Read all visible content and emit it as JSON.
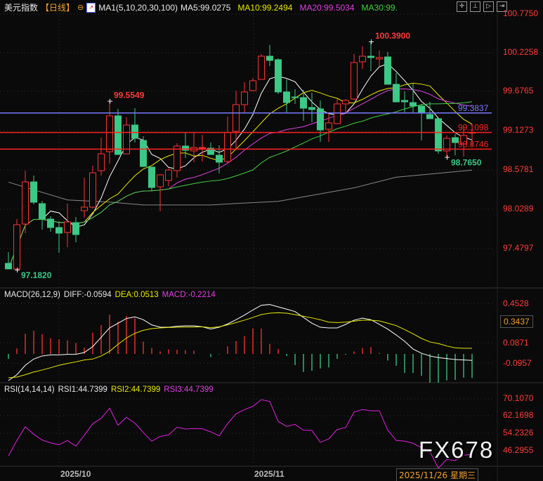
{
  "header": {
    "title": "美元指数",
    "period": "【日线】",
    "ma_label": "MA1(5,10,20,30,100)",
    "ma5": "MA5:99.0275",
    "ma10": "MA10:99.2494",
    "ma20": "MA20:99.5034",
    "ma30": "MA30:99."
  },
  "toolbar": {
    "icons": [
      "crosshair-icon",
      "range-icon",
      "play-icon",
      "forward-icon"
    ]
  },
  "price_axis": [
    "100.7750",
    "100.2258",
    "99.6765",
    "99.1273",
    "98.5781",
    "98.0289",
    "97.4797"
  ],
  "annotations": {
    "high1": "99.5549",
    "high2": "100.3900",
    "low1": "97.1820",
    "low2": "98.7650"
  },
  "hlines": [
    {
      "value": 99.3837,
      "label": "99.3837",
      "color": "#7b7bff"
    },
    {
      "value": 99.1098,
      "label": "99.1098",
      "color": "#ff2020"
    },
    {
      "value": 98.8746,
      "label": "98.8746",
      "color": "#ff2020"
    }
  ],
  "macd": {
    "label": "MACD(26,12,9)",
    "diff": "DIFF:-0.0594",
    "dea": "DEA:0.0513",
    "macd": "MACD:-0.2214",
    "axis": [
      "0.4528",
      "0.0871",
      "-0.0957"
    ],
    "current": "0.3437"
  },
  "rsi": {
    "label": "RSI(14,14,14)",
    "rsi1": "RSI1:44.7399",
    "rsi2": "RSI2:44.7399",
    "rsi3": "RSI3:44.7399",
    "axis": [
      "70.1070",
      "62.1698",
      "54.2326",
      "46.2955"
    ]
  },
  "xaxis": {
    "oct": "2025/10",
    "nov": "2025/11",
    "cursor_date": "2025/11/26 星期三"
  },
  "watermark": "FX678",
  "colors": {
    "up": "#ff3232",
    "down": "#3cc886",
    "ma5": "#ffffff",
    "ma10": "#e8e800",
    "ma20": "#e040e0",
    "ma30": "#40d040",
    "ma100": "#888888"
  },
  "chart_data": {
    "type": "candlestick",
    "ohlc": [
      [
        97.268,
        97.426,
        97.2,
        97.19
      ],
      [
        97.189,
        97.891,
        97.182,
        97.812
      ],
      [
        97.821,
        98.572,
        97.693,
        98.414
      ],
      [
        98.414,
        98.503,
        98.098,
        98.128
      ],
      [
        98.108,
        98.147,
        97.742,
        97.891
      ],
      [
        97.891,
        97.93,
        97.713,
        97.772
      ],
      [
        97.772,
        97.861,
        97.416,
        97.693
      ],
      [
        97.703,
        98.108,
        97.495,
        97.851
      ],
      [
        97.841,
        97.92,
        97.565,
        97.673
      ],
      [
        98.009,
        98.473,
        97.91,
        98.059
      ],
      [
        98.059,
        98.641,
        98.039,
        98.542
      ],
      [
        98.572,
        99.036,
        98.503,
        98.809
      ],
      [
        98.839,
        99.5549,
        98.671,
        99.343
      ],
      [
        99.343,
        99.441,
        98.799,
        98.799
      ],
      [
        98.809,
        99.323,
        98.809,
        99.214
      ],
      [
        99.214,
        99.451,
        98.967,
        99.027
      ],
      [
        98.997,
        99.056,
        98.622,
        98.631
      ],
      [
        98.622,
        98.622,
        98.286,
        98.335
      ],
      [
        98.345,
        98.523,
        97.999,
        98.513
      ],
      [
        98.434,
        98.602,
        98.355,
        98.582
      ],
      [
        98.572,
        98.957,
        98.473,
        98.918
      ],
      [
        98.918,
        99.116,
        98.75,
        98.859
      ],
      [
        98.849,
        99.116,
        98.691,
        98.898
      ],
      [
        98.888,
        99.076,
        98.701,
        98.898
      ],
      [
        98.888,
        98.967,
        98.799,
        98.799
      ],
      [
        98.789,
        98.928,
        98.533,
        98.691
      ],
      [
        98.701,
        99.333,
        98.681,
        99.106
      ],
      [
        99.125,
        99.698,
        98.869,
        99.501
      ],
      [
        99.501,
        99.817,
        99.382,
        99.679
      ],
      [
        99.698,
        99.876,
        99.688,
        99.837
      ],
      [
        99.856,
        100.212,
        99.856,
        100.182
      ],
      [
        100.182,
        100.34,
        100.044,
        100.123
      ],
      [
        100.133,
        100.153,
        99.649,
        99.679
      ],
      [
        99.679,
        99.856,
        99.392,
        99.53
      ],
      [
        99.609,
        99.718,
        99.511,
        99.6
      ],
      [
        99.6,
        99.708,
        99.274,
        99.451
      ],
      [
        99.461,
        99.669,
        99.254,
        99.432
      ],
      [
        99.441,
        99.56,
        98.977,
        99.145
      ],
      [
        99.155,
        99.392,
        98.977,
        99.244
      ],
      [
        99.234,
        99.58,
        99.234,
        99.511
      ],
      [
        99.511,
        99.58,
        99.392,
        99.56
      ],
      [
        99.58,
        100.212,
        99.56,
        100.093
      ],
      [
        100.103,
        100.321,
        100.004,
        100.182
      ],
      [
        100.182,
        100.39,
        99.975,
        100.163
      ],
      [
        100.143,
        100.261,
        100.044,
        100.163
      ],
      [
        100.172,
        100.242,
        99.787,
        99.787
      ],
      [
        99.787,
        99.945,
        99.53,
        99.54
      ],
      [
        99.56,
        99.688,
        99.392,
        99.54
      ],
      [
        99.53,
        99.797,
        99.392,
        99.481
      ],
      [
        99.481,
        99.511,
        98.997,
        99.382
      ],
      [
        99.362,
        99.54,
        99.303,
        99.303
      ],
      [
        99.303,
        99.303,
        98.809,
        98.849
      ],
      [
        98.849,
        99.066,
        98.765,
        99.027
      ],
      [
        99.036,
        99.086,
        98.789,
        98.967
      ],
      [
        98.948,
        99.214,
        98.77,
        99.066
      ],
      [
        99.1,
        99.214,
        98.918,
        99.11
      ]
    ],
    "ma100_points": [
      [
        1,
        98.41
      ],
      [
        8,
        98.16
      ],
      [
        13,
        98.13
      ],
      [
        17,
        98.09
      ],
      [
        25,
        98.09
      ],
      [
        28,
        98.11
      ],
      [
        33,
        98.14
      ],
      [
        42,
        98.33
      ],
      [
        47,
        98.48
      ],
      [
        56,
        98.58
      ]
    ],
    "ylim": [
      97.0,
      100.8
    ],
    "macd_hist": [
      -0.046,
      0.05,
      0.185,
      0.212,
      0.18,
      0.143,
      0.134,
      0.124,
      0.1,
      0.059,
      0.195,
      0.265,
      0.36,
      0.296,
      0.349,
      0.328,
      0.113,
      0.055,
      0.023,
      0.042,
      0.038,
      0.034,
      0.029,
      0,
      -0.029,
      -0.004,
      0.069,
      0.118,
      0.164,
      0.233,
      0.233,
      0.092,
      0.044,
      -0.019,
      -0.103,
      -0.166,
      -0.155,
      -0.134,
      -0.124,
      -0.046,
      -0.008,
      0.023,
      0.055,
      0.063,
      0.008,
      -0.061,
      -0.109,
      -0.176,
      -0.176,
      -0.202,
      -0.265,
      -0.265,
      -0.244,
      -0.239,
      -0.218,
      -0.2214
    ],
    "diff": [
      -0.245,
      -0.191,
      -0.105,
      -0.047,
      -0.019,
      -0.009,
      -0.009,
      -0.004,
      -0.004,
      0.013,
      0.067,
      0.153,
      0.239,
      0.282,
      0.325,
      0.34,
      0.314,
      0.267,
      0.245,
      0.245,
      0.254,
      0.258,
      0.258,
      0.249,
      0.228,
      0.245,
      0.275,
      0.314,
      0.357,
      0.404,
      0.447,
      0.454,
      0.432,
      0.411,
      0.389,
      0.335,
      0.282,
      0.245,
      0.239,
      0.239,
      0.271,
      0.31,
      0.329,
      0.314,
      0.271,
      0.228,
      0.174,
      0.116,
      0.045,
      0.006,
      -0.019,
      -0.034,
      -0.043,
      -0.052,
      -0.056,
      -0.0594
    ],
    "dea": [
      -0.219,
      -0.213,
      -0.191,
      -0.166,
      -0.148,
      -0.127,
      -0.105,
      -0.088,
      -0.073,
      -0.056,
      -0.047,
      -0.019,
      0.024,
      0.088,
      0.146,
      0.189,
      0.217,
      0.232,
      0.239,
      0.243,
      0.245,
      0.247,
      0.247,
      0.249,
      0.241,
      0.249,
      0.267,
      0.288,
      0.31,
      0.335,
      0.361,
      0.374,
      0.378,
      0.374,
      0.361,
      0.346,
      0.331,
      0.314,
      0.292,
      0.288,
      0.292,
      0.301,
      0.31,
      0.31,
      0.303,
      0.282,
      0.26,
      0.224,
      0.185,
      0.142,
      0.11,
      0.095,
      0.073,
      0.056,
      0.052,
      0.0513
    ],
    "rsi": [
      44.03,
      51.11,
      57.45,
      54.01,
      51.33,
      50.04,
      49.18,
      51.11,
      48.54,
      53.47,
      58.84,
      61.2,
      65.92,
      58.09,
      61.74,
      59.06,
      54.76,
      50.79,
      52.94,
      53.69,
      57.23,
      56.37,
      56.59,
      56.48,
      55.08,
      53.26,
      58.84,
      63.35,
      65.28,
      66.78,
      69.79,
      69.03,
      59.91,
      57.55,
      58.52,
      55.84,
      55.73,
      50.26,
      51.87,
      56.16,
      57.02,
      64.1,
      65.28,
      64.74,
      64.74,
      55.84,
      51.11,
      50.79,
      49.83,
      47.79,
      45.96,
      38.45,
      42.42,
      41.89,
      44.36,
      44.74
    ]
  }
}
